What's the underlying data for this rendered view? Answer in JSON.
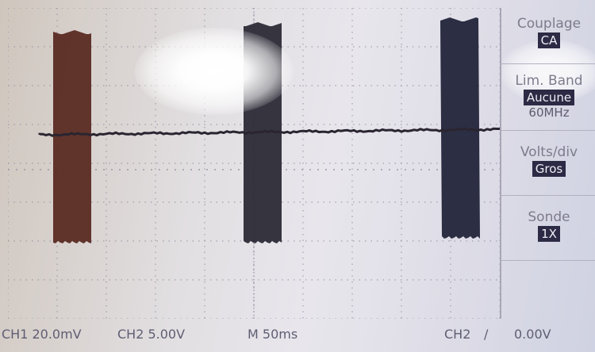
{
  "menu": {
    "coupling": {
      "title": "Couplage",
      "value": "CA"
    },
    "bandwidth": {
      "title": "Lim. Band",
      "value": "Aucune",
      "extra": "60MHz"
    },
    "volts_div": {
      "title": "Volts/div",
      "value": "Gros"
    },
    "probe": {
      "title": "Sonde",
      "value": "1X"
    }
  },
  "status": {
    "ch1": "CH1 20.0mV",
    "ch2": "CH2 5.00V",
    "timebase": "M 50ms",
    "trigger_source": "CH2",
    "trigger_slope": "/",
    "trigger_level": "0.00V"
  },
  "colors": {
    "trace": "#2a2530",
    "burst_left": "#5a2a22",
    "burst_mid": "#2c2a36",
    "burst_right": "#22243a",
    "grid": "#8d8a9c",
    "menu_value_bg": "#2c2a44"
  }
}
